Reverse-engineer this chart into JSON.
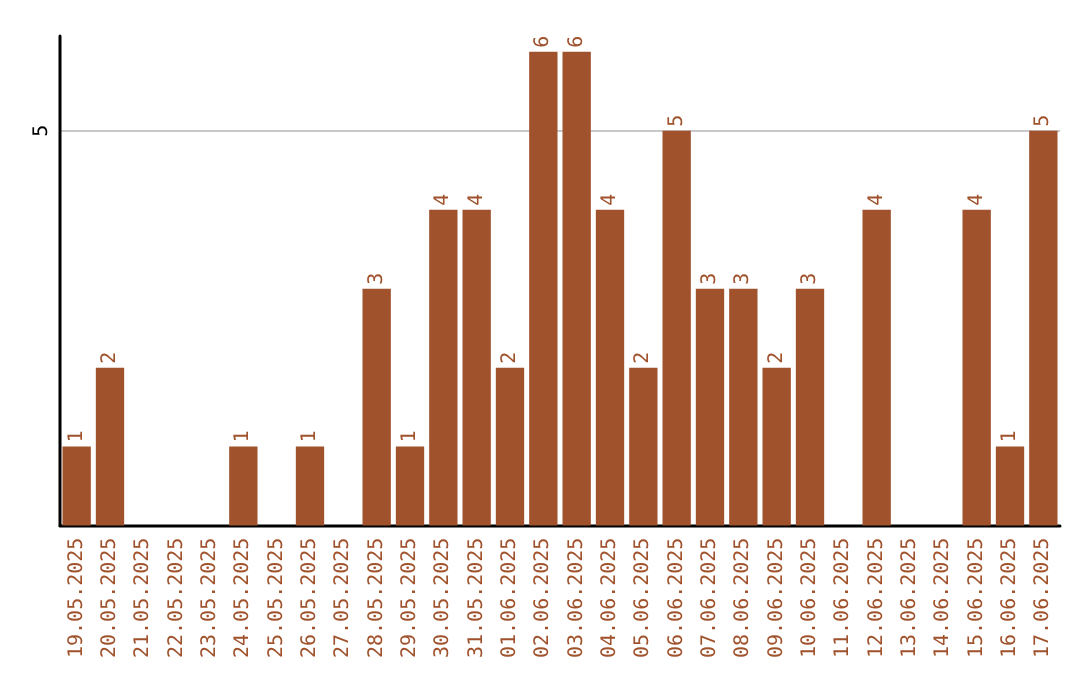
{
  "chart_data": {
    "type": "bar",
    "categories": [
      "19.05.2025",
      "20.05.2025",
      "21.05.2025",
      "22.05.2025",
      "23.05.2025",
      "24.05.2025",
      "25.05.2025",
      "26.05.2025",
      "27.05.2025",
      "28.05.2025",
      "29.05.2025",
      "30.05.2025",
      "31.05.2025",
      "01.06.2025",
      "02.06.2025",
      "03.06.2025",
      "04.06.2025",
      "05.06.2025",
      "06.06.2025",
      "07.06.2025",
      "08.06.2025",
      "09.06.2025",
      "10.06.2025",
      "11.06.2025",
      "12.06.2025",
      "13.06.2025",
      "14.06.2025",
      "15.06.2025",
      "16.06.2025",
      "17.06.2025"
    ],
    "values": [
      1,
      2,
      0,
      0,
      0,
      1,
      0,
      1,
      0,
      3,
      1,
      4,
      4,
      2,
      6,
      6,
      4,
      2,
      5,
      3,
      3,
      2,
      3,
      0,
      4,
      0,
      0,
      4,
      1,
      5
    ],
    "value_labels": [
      "1",
      "2",
      null,
      null,
      null,
      "1",
      null,
      "1",
      null,
      "3",
      "1",
      "4",
      "4",
      "2",
      "6",
      "6",
      "4",
      "2",
      "5",
      "3",
      "3",
      "2",
      "3",
      null,
      "4",
      null,
      null,
      "4",
      "1",
      "5"
    ],
    "color": "#a0522d",
    "ylim": [
      0,
      6.2
    ],
    "yticks": [
      5
    ],
    "grid": "y"
  }
}
